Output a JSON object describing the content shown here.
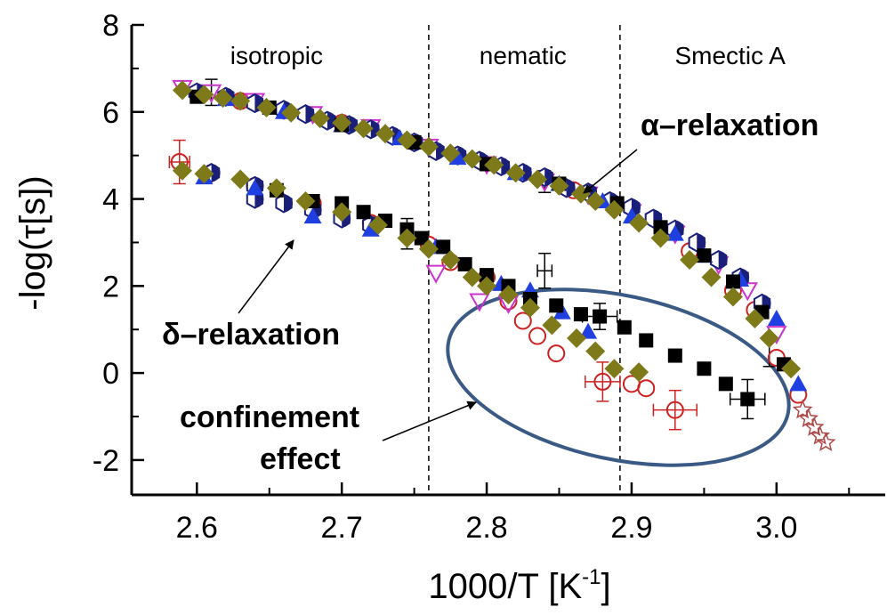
{
  "chart_data": {
    "type": "scatter",
    "xlabel": "1000/T [K",
    "xlabel_sup": "-1",
    "xlabel_close": "]",
    "ylabel": "-log(τ[s])",
    "xlim": [
      2.555,
      3.075
    ],
    "ylim": [
      -2.8,
      8
    ],
    "x_ticks": [
      2.6,
      2.7,
      2.8,
      2.9,
      3.0
    ],
    "x_tick_labels": [
      "2.6",
      "2.7",
      "2.8",
      "2.9",
      "3.0"
    ],
    "y_ticks": [
      -2,
      0,
      2,
      4,
      6,
      8
    ],
    "y_tick_labels": [
      "-2",
      "0",
      "2",
      "4",
      "6",
      "8"
    ],
    "grid": false,
    "phase_boundaries": [
      2.76,
      2.892
    ],
    "phase_labels": [
      {
        "text": "isotropic",
        "x": 2.655
      },
      {
        "text": "nematic",
        "x": 2.825
      },
      {
        "text": "Smectic A",
        "x": 2.968
      }
    ],
    "annotations": {
      "alpha": "α–relaxation",
      "delta": "δ–relaxation",
      "confinement_line1": "confinement",
      "confinement_line2": "effect"
    },
    "colors": {
      "black_square": "#000000",
      "red_circle": "#cc2222",
      "blue_triangle": "#1f3fe0",
      "navy_hexagon": "#1a1f7a",
      "magenta_triangle": "#cc33cc",
      "olive_diamond": "#7e7a1a",
      "brown_star": "#b04a4a",
      "ellipse": "#3a5a85"
    },
    "series": [
      {
        "marker": "olive-diamond",
        "points": [
          [
            2.59,
            6.5
          ],
          [
            2.605,
            6.4
          ],
          [
            2.618,
            6.32
          ],
          [
            2.63,
            6.25
          ],
          [
            2.648,
            6.1
          ],
          [
            2.665,
            5.98
          ],
          [
            2.685,
            5.85
          ],
          [
            2.7,
            5.75
          ],
          [
            2.715,
            5.62
          ],
          [
            2.73,
            5.5
          ],
          [
            2.745,
            5.35
          ],
          [
            2.76,
            5.2
          ],
          [
            2.775,
            5.05
          ],
          [
            2.79,
            4.92
          ],
          [
            2.805,
            4.78
          ],
          [
            2.82,
            4.6
          ],
          [
            2.835,
            4.45
          ],
          [
            2.85,
            4.3
          ],
          [
            2.865,
            4.12
          ],
          [
            2.875,
            3.95
          ],
          [
            2.888,
            3.75
          ],
          [
            2.905,
            3.45
          ],
          [
            2.92,
            3.1
          ],
          [
            2.94,
            2.6
          ],
          [
            2.955,
            2.2
          ],
          [
            2.97,
            1.75
          ],
          [
            2.985,
            1.25
          ],
          [
            2.995,
            0.8
          ],
          [
            3.01,
            0.1
          ],
          [
            2.59,
            4.65
          ],
          [
            2.605,
            4.58
          ],
          [
            2.63,
            4.45
          ],
          [
            2.655,
            4.25
          ],
          [
            2.675,
            3.95
          ],
          [
            2.7,
            3.7
          ],
          [
            2.725,
            3.4
          ],
          [
            2.745,
            3.1
          ],
          [
            2.76,
            2.85
          ],
          [
            2.775,
            2.6
          ],
          [
            2.79,
            2.2
          ],
          [
            2.8,
            2.0
          ],
          [
            2.815,
            1.8
          ],
          [
            2.83,
            1.5
          ],
          [
            2.845,
            1.1
          ],
          [
            2.862,
            0.8
          ],
          [
            2.875,
            0.5
          ],
          [
            2.888,
            0.1
          ],
          [
            2.905,
            0.02
          ]
        ]
      },
      {
        "marker": "navy-hexagon",
        "points": [
          [
            2.6,
            6.45
          ],
          [
            2.62,
            6.35
          ],
          [
            2.64,
            6.2
          ],
          [
            2.66,
            6.05
          ],
          [
            2.675,
            5.95
          ],
          [
            2.69,
            5.8
          ],
          [
            2.705,
            5.7
          ],
          [
            2.72,
            5.6
          ],
          [
            2.735,
            5.45
          ],
          [
            2.75,
            5.3
          ],
          [
            2.765,
            5.1
          ],
          [
            2.78,
            5.0
          ],
          [
            2.795,
            4.88
          ],
          [
            2.81,
            4.75
          ],
          [
            2.825,
            4.6
          ],
          [
            2.84,
            4.5
          ],
          [
            2.855,
            4.25
          ],
          [
            2.87,
            4.15
          ],
          [
            2.885,
            3.95
          ],
          [
            2.9,
            3.8
          ],
          [
            2.915,
            3.55
          ],
          [
            2.93,
            3.3
          ],
          [
            2.945,
            3.0
          ],
          [
            2.96,
            2.6
          ],
          [
            2.975,
            2.2
          ],
          [
            2.99,
            1.6
          ],
          [
            2.61,
            4.6
          ],
          [
            2.64,
            4.3
          ],
          [
            2.66,
            3.9
          ],
          [
            2.68,
            3.75
          ],
          [
            2.7,
            3.55
          ],
          [
            2.72,
            3.4
          ],
          [
            2.64,
            4.0
          ]
        ]
      },
      {
        "marker": "blue-triangle",
        "points": [
          [
            2.62,
            6.3
          ],
          [
            2.66,
            6.0
          ],
          [
            2.7,
            5.7
          ],
          [
            2.74,
            5.4
          ],
          [
            2.78,
            4.95
          ],
          [
            2.82,
            4.6
          ],
          [
            2.85,
            4.35
          ],
          [
            2.88,
            3.95
          ],
          [
            2.9,
            3.6
          ],
          [
            2.93,
            3.2
          ],
          [
            2.95,
            2.7
          ],
          [
            2.975,
            2.15
          ],
          [
            3.0,
            1.25
          ],
          [
            3.015,
            -0.25
          ],
          [
            2.605,
            4.5
          ],
          [
            2.64,
            4.25
          ],
          [
            2.68,
            3.6
          ],
          [
            2.72,
            3.3
          ],
          [
            2.765,
            2.9
          ],
          [
            2.81,
            2.05
          ],
          [
            2.83,
            1.9
          ],
          [
            2.852,
            1.4
          ],
          [
            2.87,
            0.95
          ]
        ]
      },
      {
        "marker": "magenta-triangle",
        "points": [
          [
            2.59,
            6.55
          ],
          [
            2.61,
            6.45
          ],
          [
            2.64,
            6.25
          ],
          [
            2.68,
            5.95
          ],
          [
            2.72,
            5.65
          ],
          [
            2.76,
            5.2
          ],
          [
            2.8,
            4.8
          ],
          [
            2.84,
            4.4
          ],
          [
            2.87,
            4.1
          ],
          [
            2.9,
            3.7
          ],
          [
            2.93,
            3.2
          ],
          [
            2.96,
            2.5
          ],
          [
            2.98,
            1.9
          ],
          [
            3.0,
            0.9
          ],
          [
            2.765,
            2.3
          ],
          [
            2.795,
            1.65
          ],
          [
            2.815,
            1.6
          ]
        ]
      },
      {
        "marker": "black-square",
        "points": [
          [
            2.6,
            6.35
          ],
          [
            2.65,
            6.1
          ],
          [
            2.7,
            5.7
          ],
          [
            2.75,
            5.3
          ],
          [
            2.8,
            4.8
          ],
          [
            2.85,
            4.35
          ],
          [
            2.89,
            3.9
          ],
          [
            2.92,
            3.35
          ],
          [
            2.95,
            2.7
          ],
          [
            2.97,
            2.1
          ],
          [
            2.99,
            1.4
          ],
          [
            3.005,
            0.2
          ],
          [
            2.655,
            4.2
          ],
          [
            2.68,
            3.95
          ],
          [
            2.7,
            3.9
          ],
          [
            2.715,
            3.7
          ],
          [
            2.73,
            3.5
          ],
          [
            2.745,
            3.3
          ],
          [
            2.755,
            3.1
          ],
          [
            2.77,
            2.9
          ],
          [
            2.785,
            2.5
          ],
          [
            2.8,
            2.25
          ],
          [
            2.815,
            2.0
          ],
          [
            2.83,
            1.7
          ],
          [
            2.848,
            1.55
          ],
          [
            2.865,
            1.35
          ],
          [
            2.878,
            1.3
          ],
          [
            2.895,
            1.05
          ],
          [
            2.91,
            0.75
          ],
          [
            2.93,
            0.4
          ],
          [
            2.95,
            0.1
          ],
          [
            2.965,
            -0.25
          ],
          [
            2.98,
            -0.6
          ]
        ]
      },
      {
        "marker": "red-circle",
        "points": [
          [
            2.588,
            4.85
          ],
          [
            2.61,
            4.6
          ],
          [
            2.64,
            4.3
          ],
          [
            2.68,
            3.9
          ],
          [
            2.72,
            3.45
          ],
          [
            2.76,
            2.95
          ],
          [
            2.775,
            2.55
          ],
          [
            2.8,
            2.2
          ],
          [
            2.815,
            1.65
          ],
          [
            2.825,
            1.2
          ],
          [
            2.835,
            0.85
          ],
          [
            2.848,
            0.45
          ],
          [
            2.88,
            -0.2
          ],
          [
            2.9,
            -0.25
          ],
          [
            2.91,
            -0.35
          ],
          [
            2.93,
            -0.85
          ],
          [
            2.63,
            6.25
          ],
          [
            2.7,
            5.75
          ],
          [
            2.78,
            5.0
          ],
          [
            2.86,
            4.2
          ],
          [
            2.94,
            2.8
          ],
          [
            2.97,
            1.9
          ],
          [
            2.985,
            1.45
          ],
          [
            3.0,
            0.35
          ],
          [
            3.015,
            -0.5
          ]
        ]
      },
      {
        "marker": "brown-star",
        "points": [
          [
            3.018,
            -0.85
          ],
          [
            3.022,
            -1.05
          ],
          [
            3.026,
            -1.25
          ],
          [
            3.03,
            -1.45
          ],
          [
            3.034,
            -1.6
          ]
        ]
      }
    ],
    "error_bars": [
      {
        "x": 2.588,
        "y": 4.85,
        "dy": 0.5,
        "dx": 0.007,
        "color": "#cc2222"
      },
      {
        "x": 2.61,
        "y": 6.45,
        "dy": 0.3,
        "dx": 0.0,
        "color": "#000000"
      },
      {
        "x": 2.745,
        "y": 3.2,
        "dy": 0.35,
        "dx": 0.0,
        "color": "#000000"
      },
      {
        "x": 2.84,
        "y": 2.35,
        "dy": 0.4,
        "dx": 0.005,
        "color": "#000000"
      },
      {
        "x": 2.84,
        "y": 4.4,
        "dy": 0.25,
        "dx": 0.0,
        "color": "#000000"
      },
      {
        "x": 2.878,
        "y": 1.3,
        "dy": 0.3,
        "dx": 0.012,
        "color": "#000000"
      },
      {
        "x": 2.88,
        "y": -0.2,
        "dy": 0.45,
        "dx": 0.012,
        "color": "#cc2222"
      },
      {
        "x": 2.93,
        "y": -0.85,
        "dy": 0.45,
        "dx": 0.015,
        "color": "#cc2222"
      },
      {
        "x": 2.98,
        "y": -0.6,
        "dy": 0.45,
        "dx": 0.012,
        "color": "#000000"
      },
      {
        "x": 2.995,
        "y": 0.45,
        "dy": 0.3,
        "dx": 0.0,
        "color": "#000000"
      }
    ]
  }
}
